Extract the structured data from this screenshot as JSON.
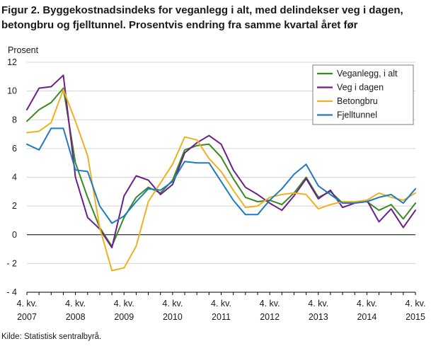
{
  "title": "Figur 2. Byggekostnadsindeks for veganlegg i alt, med delindekser veg i dagen, betongbru og fjelltunnel. Prosentvis endring fra samme kvartal året før",
  "source": "Kilde: Statistisk sentralbyrå.",
  "chart_data": {
    "type": "line",
    "title": "Figur 2. Byggekostnadsindeks for veganlegg i alt, med delindekser veg i dagen, betongbru og fjelltunnel. Prosentvis endring fra samme kvartal året før",
    "ylabel": "Prosent",
    "xlabel": "",
    "ylim": [
      -4,
      12
    ],
    "yticks": [
      -4,
      -2,
      0,
      2,
      4,
      6,
      8,
      10,
      12
    ],
    "ytick_labels": [
      "- 4",
      "- 2",
      "0",
      "2",
      "4",
      "6",
      "8",
      "10",
      "12"
    ],
    "x_tick_labels": [
      {
        "index": 0,
        "line1": "4. kv.",
        "line2": "2007"
      },
      {
        "index": 4,
        "line1": "4. kv.",
        "line2": "2008"
      },
      {
        "index": 8,
        "line1": "4. kv.",
        "line2": "2009"
      },
      {
        "index": 12,
        "line1": "4. kv.",
        "line2": "2010"
      },
      {
        "index": 16,
        "line1": "4. kv.",
        "line2": "2011"
      },
      {
        "index": 20,
        "line1": "4. kv.",
        "line2": "2012"
      },
      {
        "index": 24,
        "line1": "4. kv.",
        "line2": "2013"
      },
      {
        "index": 28,
        "line1": "4. kv.",
        "line2": "2014"
      },
      {
        "index": 32,
        "line1": "4. kv.",
        "line2": "2015"
      }
    ],
    "legend_position": "top-right",
    "grid": "horizontal",
    "series": [
      {
        "name": "Veganlegg, i alt",
        "color": "#3a8a1f",
        "values": [
          7.9,
          8.7,
          9.2,
          10.2,
          5.0,
          2.6,
          0.5,
          -0.8,
          1.2,
          2.6,
          3.3,
          2.9,
          3.8,
          5.9,
          6.2,
          6.3,
          5.4,
          3.9,
          2.6,
          2.3,
          2.4,
          2.1,
          2.9,
          4.0,
          2.6,
          3.0,
          2.2,
          2.3,
          2.3,
          1.7,
          2.1,
          1.1,
          2.2
        ]
      },
      {
        "name": "Veg i dagen",
        "color": "#6b1f8a",
        "values": [
          8.7,
          10.2,
          10.3,
          11.1,
          4.0,
          1.2,
          0.4,
          -0.9,
          2.7,
          4.1,
          3.8,
          2.8,
          3.5,
          5.7,
          6.4,
          6.9,
          6.3,
          4.5,
          3.3,
          2.8,
          2.2,
          1.7,
          2.7,
          3.9,
          2.5,
          3.1,
          1.9,
          2.2,
          2.4,
          0.9,
          1.8,
          0.5,
          1.7
        ]
      },
      {
        "name": "Betongbru",
        "color": "#f0b020",
        "values": [
          7.1,
          7.2,
          7.8,
          10.1,
          7.9,
          5.5,
          0.5,
          -2.5,
          -2.3,
          -0.8,
          2.3,
          3.6,
          4.9,
          6.8,
          6.6,
          5.3,
          4.4,
          3.1,
          1.9,
          2.0,
          2.6,
          2.8,
          2.9,
          2.8,
          1.8,
          2.1,
          2.3,
          2.3,
          2.4,
          2.9,
          2.6,
          2.4,
          2.9
        ]
      },
      {
        "name": "Fjelltunnel",
        "color": "#1f7ac0",
        "values": [
          6.3,
          5.9,
          7.4,
          7.4,
          4.5,
          4.4,
          2.0,
          0.8,
          1.3,
          2.3,
          3.2,
          3.1,
          3.7,
          5.1,
          5.0,
          5.0,
          3.7,
          2.4,
          1.4,
          1.4,
          2.4,
          3.2,
          4.2,
          4.9,
          3.4,
          2.8,
          2.2,
          2.2,
          2.3,
          2.6,
          2.8,
          2.2,
          3.2
        ]
      }
    ]
  }
}
